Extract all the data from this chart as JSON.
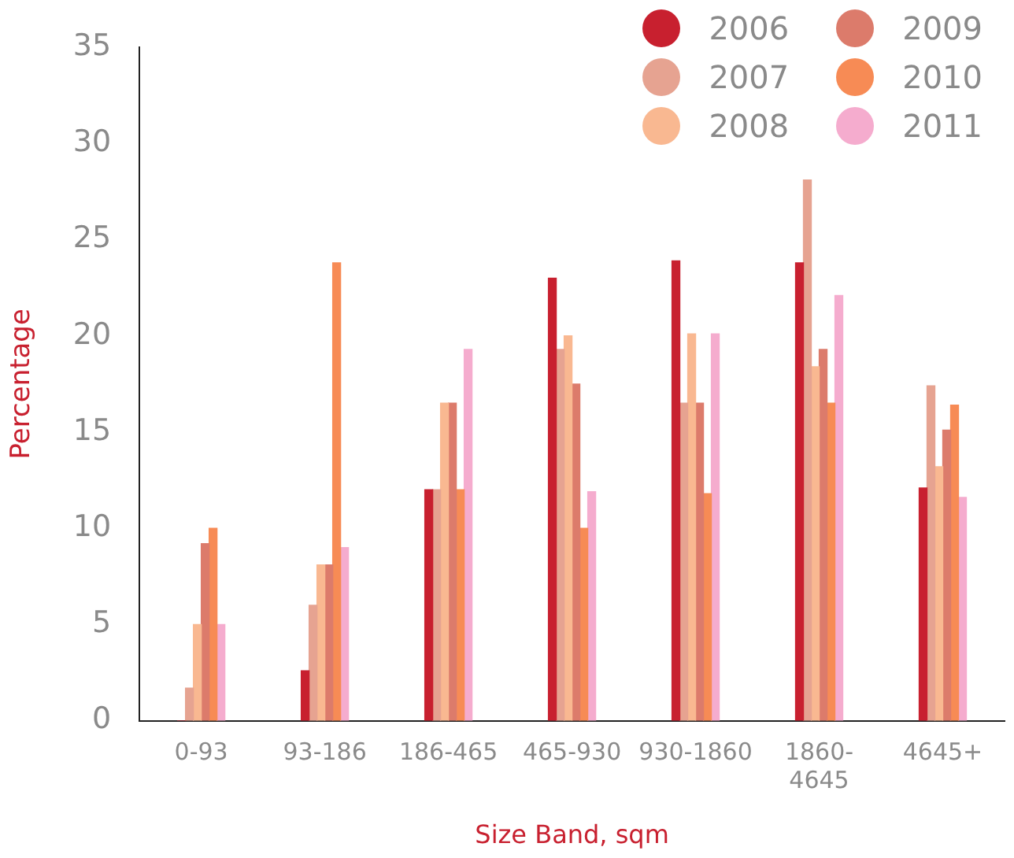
{
  "chart_data": {
    "type": "bar",
    "xlabel": "Size Band, sqm",
    "ylabel": "Percentage",
    "categories": [
      "0-93",
      "93-186",
      "186-465",
      "465-930",
      "930-1860",
      "1860-4645",
      "4645+"
    ],
    "series": [
      {
        "name": "2006",
        "color": "#c8202f",
        "values": [
          0,
          2.6,
          12,
          23,
          23.9,
          23.8,
          12.1
        ]
      },
      {
        "name": "2007",
        "color": "#e6a391",
        "values": [
          1.7,
          6,
          12,
          19.3,
          16.5,
          28.1,
          17.4
        ]
      },
      {
        "name": "2008",
        "color": "#f9b891",
        "values": [
          5,
          8.1,
          16.5,
          20,
          20.1,
          18.4,
          13.2
        ]
      },
      {
        "name": "2009",
        "color": "#dc7b6b",
        "values": [
          9.2,
          8.1,
          16.5,
          17.5,
          16.5,
          19.3,
          15.1
        ]
      },
      {
        "name": "2010",
        "color": "#f78b55",
        "values": [
          10,
          23.8,
          12,
          10,
          11.8,
          16.5,
          16.4
        ]
      },
      {
        "name": "2011",
        "color": "#f5acce",
        "values": [
          5,
          9,
          19.3,
          11.9,
          20.1,
          22.1,
          11.6
        ]
      }
    ],
    "ylim": [
      0,
      35
    ],
    "yticks": [
      0,
      5,
      10,
      15,
      20,
      25,
      30,
      35
    ],
    "grid": false,
    "legend": "top right"
  }
}
